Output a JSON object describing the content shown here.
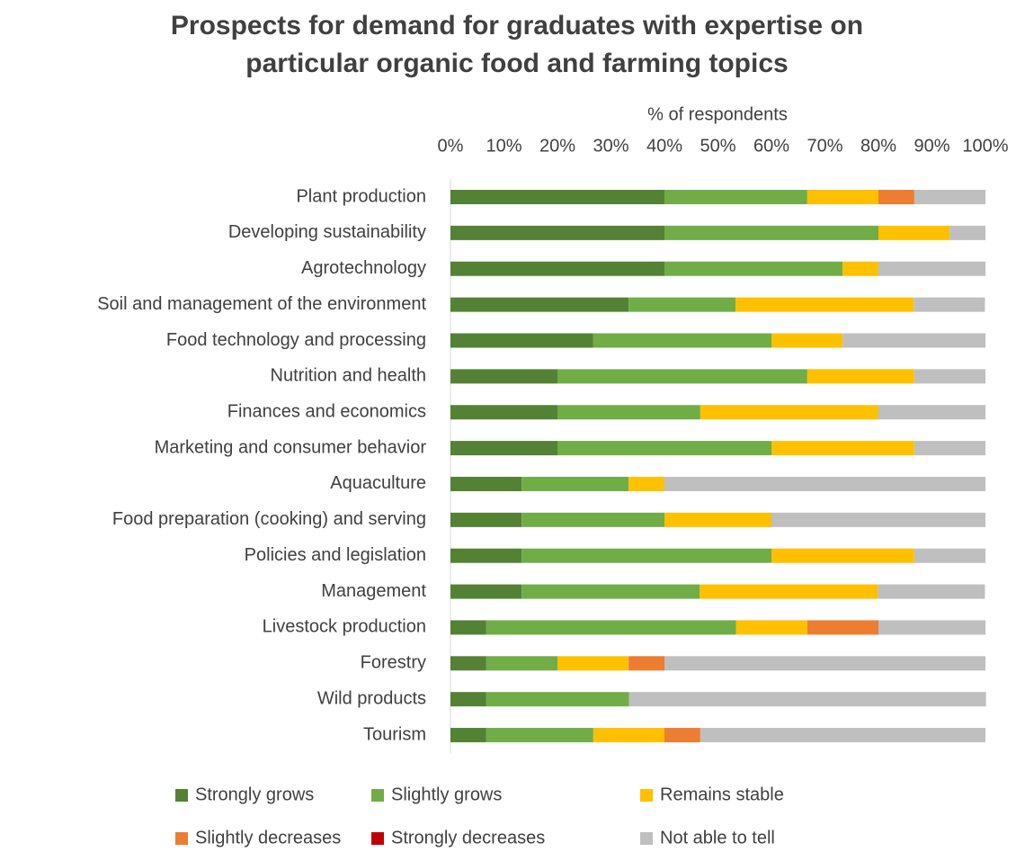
{
  "chart_data": {
    "type": "stacked_bar_horizontal",
    "title": [
      "Prospects for demand for graduates with expertise on",
      "particular organic food and farming topics"
    ],
    "x_label": "% of respondents",
    "categories": [
      "Plant production",
      "Developing sustainability",
      "Agrotechnology",
      "Soil and  management of the environment",
      "Food technology and processing",
      "Nutrition and health",
      "Finances and economics",
      "Marketing and consumer behavior",
      "Aquaculture",
      "Food preparation (cooking) and serving",
      "Policies and legislation",
      "Management",
      "Livestock production",
      "Forestry",
      "Wild products",
      "Tourism"
    ],
    "series": [
      {
        "name": "Strongly grows",
        "color": "#548235",
        "values": [
          40,
          40,
          40,
          33.3,
          26.7,
          20,
          20,
          20,
          13.3,
          13.3,
          13.3,
          13.3,
          6.7,
          6.7,
          6.7,
          6.7
        ]
      },
      {
        "name": "Slightly grows",
        "color": "#70ad47",
        "values": [
          26.7,
          40,
          33.3,
          20,
          33.3,
          46.7,
          26.7,
          40,
          20,
          26.7,
          46.7,
          33.3,
          46.7,
          13.3,
          26.7,
          20
        ]
      },
      {
        "name": "Remains stable",
        "color": "#ffc000",
        "values": [
          13.3,
          13.3,
          6.7,
          33.3,
          13.3,
          20,
          33.3,
          26.7,
          6.7,
          20,
          26.7,
          33.3,
          13.3,
          13.3,
          0,
          13.3
        ]
      },
      {
        "name": "Slightly decreases",
        "color": "#ed7d31",
        "values": [
          6.7,
          0,
          0,
          0,
          0,
          0,
          0,
          0,
          0,
          0,
          0,
          0,
          13.3,
          6.7,
          0,
          6.7
        ]
      },
      {
        "name": "Strongly decreases",
        "color": "#c00000",
        "values": [
          0,
          0,
          0,
          0,
          0,
          0,
          0,
          0,
          0,
          0,
          0,
          0,
          0,
          0,
          0,
          0
        ]
      },
      {
        "name": "Not able to tell",
        "color": "#bfbfbf",
        "values": [
          13.3,
          6.7,
          20,
          13.3,
          26.7,
          13.3,
          20,
          13.3,
          60,
          40,
          13.3,
          20,
          20,
          60,
          66.7,
          53.3
        ]
      }
    ],
    "xlim": [
      0,
      100
    ],
    "xticks": [
      {
        "value": 0,
        "label": "0%"
      },
      {
        "value": 10,
        "label": "10%"
      },
      {
        "value": 20,
        "label": "20%"
      },
      {
        "value": 30,
        "label": "30%"
      },
      {
        "value": 40,
        "label": "40%"
      },
      {
        "value": 50,
        "label": "50%"
      },
      {
        "value": 60,
        "label": "60%"
      },
      {
        "value": 70,
        "label": "70%"
      },
      {
        "value": 80,
        "label": "80%"
      },
      {
        "value": 90,
        "label": "90%"
      },
      {
        "value": 100,
        "label": "100%"
      }
    ],
    "grid": false,
    "legend": "bottom"
  }
}
